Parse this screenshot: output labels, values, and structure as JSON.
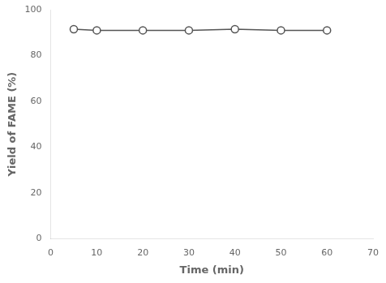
{
  "chart_data": {
    "type": "line",
    "xlabel": "Time (min)",
    "ylabel": "Yield of FAME (%)",
    "x": [
      5,
      10,
      20,
      30,
      40,
      50,
      60
    ],
    "values": [
      91.5,
      91.0,
      91.0,
      91.0,
      91.5,
      91.0,
      91.0
    ],
    "xlim": [
      0,
      70
    ],
    "ylim": [
      0,
      100
    ],
    "xticks": [
      0,
      10,
      20,
      30,
      40,
      50,
      60,
      70
    ],
    "yticks": [
      0,
      20,
      40,
      60,
      80,
      100
    ],
    "color": "#555555",
    "marker": "circle",
    "grid": false
  }
}
